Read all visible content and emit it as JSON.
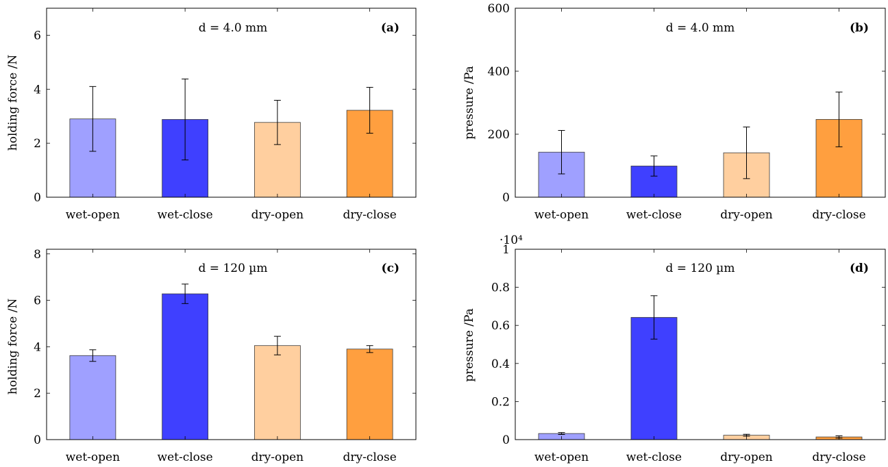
{
  "chart_data": [
    {
      "id": "a",
      "type": "bar",
      "panel_label": "(a)",
      "annotation": "d = 4.0 mm",
      "ylabel": "holding force /N",
      "categories": [
        "wet-open",
        "wet-close",
        "dry-open",
        "dry-close"
      ],
      "values": [
        2.9,
        2.88,
        2.77,
        3.22
      ],
      "errors": [
        1.2,
        1.5,
        0.82,
        0.85
      ],
      "ylim": [
        0,
        7
      ],
      "yticks": [
        0,
        2,
        4,
        6
      ],
      "ytick_labels": [
        "0",
        "2",
        "4",
        "6"
      ],
      "y_multiplier": "",
      "colors": [
        "#9fa0ff",
        "#3f40ff",
        "#ffcf9f",
        "#ff9f3f"
      ]
    },
    {
      "id": "b",
      "type": "bar",
      "panel_label": "(b)",
      "annotation": "d = 4.0 mm",
      "ylabel": "pressure /Pa",
      "categories": [
        "wet-open",
        "wet-close",
        "dry-open",
        "dry-close"
      ],
      "values": [
        143,
        99,
        141,
        247
      ],
      "errors": [
        69,
        32,
        82,
        87
      ],
      "ylim": [
        0,
        600
      ],
      "yticks": [
        0,
        200,
        400,
        600
      ],
      "ytick_labels": [
        "0",
        "200",
        "400",
        "600"
      ],
      "y_multiplier": "",
      "colors": [
        "#9fa0ff",
        "#3f40ff",
        "#ffcf9f",
        "#ff9f3f"
      ]
    },
    {
      "id": "c",
      "type": "bar",
      "panel_label": "(c)",
      "annotation": "d = 120 µm",
      "ylabel": "holding force /N",
      "categories": [
        "wet-open",
        "wet-close",
        "dry-open",
        "dry-close"
      ],
      "values": [
        3.62,
        6.28,
        4.05,
        3.9
      ],
      "errors": [
        0.25,
        0.42,
        0.4,
        0.15
      ],
      "ylim": [
        0,
        8.2
      ],
      "yticks": [
        0,
        2,
        4,
        6,
        8
      ],
      "ytick_labels": [
        "0",
        "2",
        "4",
        "6",
        "8"
      ],
      "y_multiplier": "",
      "colors": [
        "#9fa0ff",
        "#3f40ff",
        "#ffcf9f",
        "#ff9f3f"
      ]
    },
    {
      "id": "d",
      "type": "bar",
      "panel_label": "(d)",
      "annotation": "d = 120 µm",
      "ylabel": "pressure /Pa",
      "categories": [
        "wet-open",
        "wet-close",
        "dry-open",
        "dry-close"
      ],
      "values": [
        320,
        6420,
        230,
        140
      ],
      "errors": [
        50,
        1140,
        50,
        60
      ],
      "ylim": [
        0,
        10000
      ],
      "yticks": [
        0,
        2000,
        4000,
        6000,
        8000,
        10000
      ],
      "ytick_labels": [
        "0",
        "0.2",
        "0.4",
        "0.6",
        "0.8",
        "1"
      ],
      "y_multiplier": "·10⁴",
      "colors": [
        "#9fa0ff",
        "#3f40ff",
        "#ffcf9f",
        "#ff9f3f"
      ]
    }
  ]
}
